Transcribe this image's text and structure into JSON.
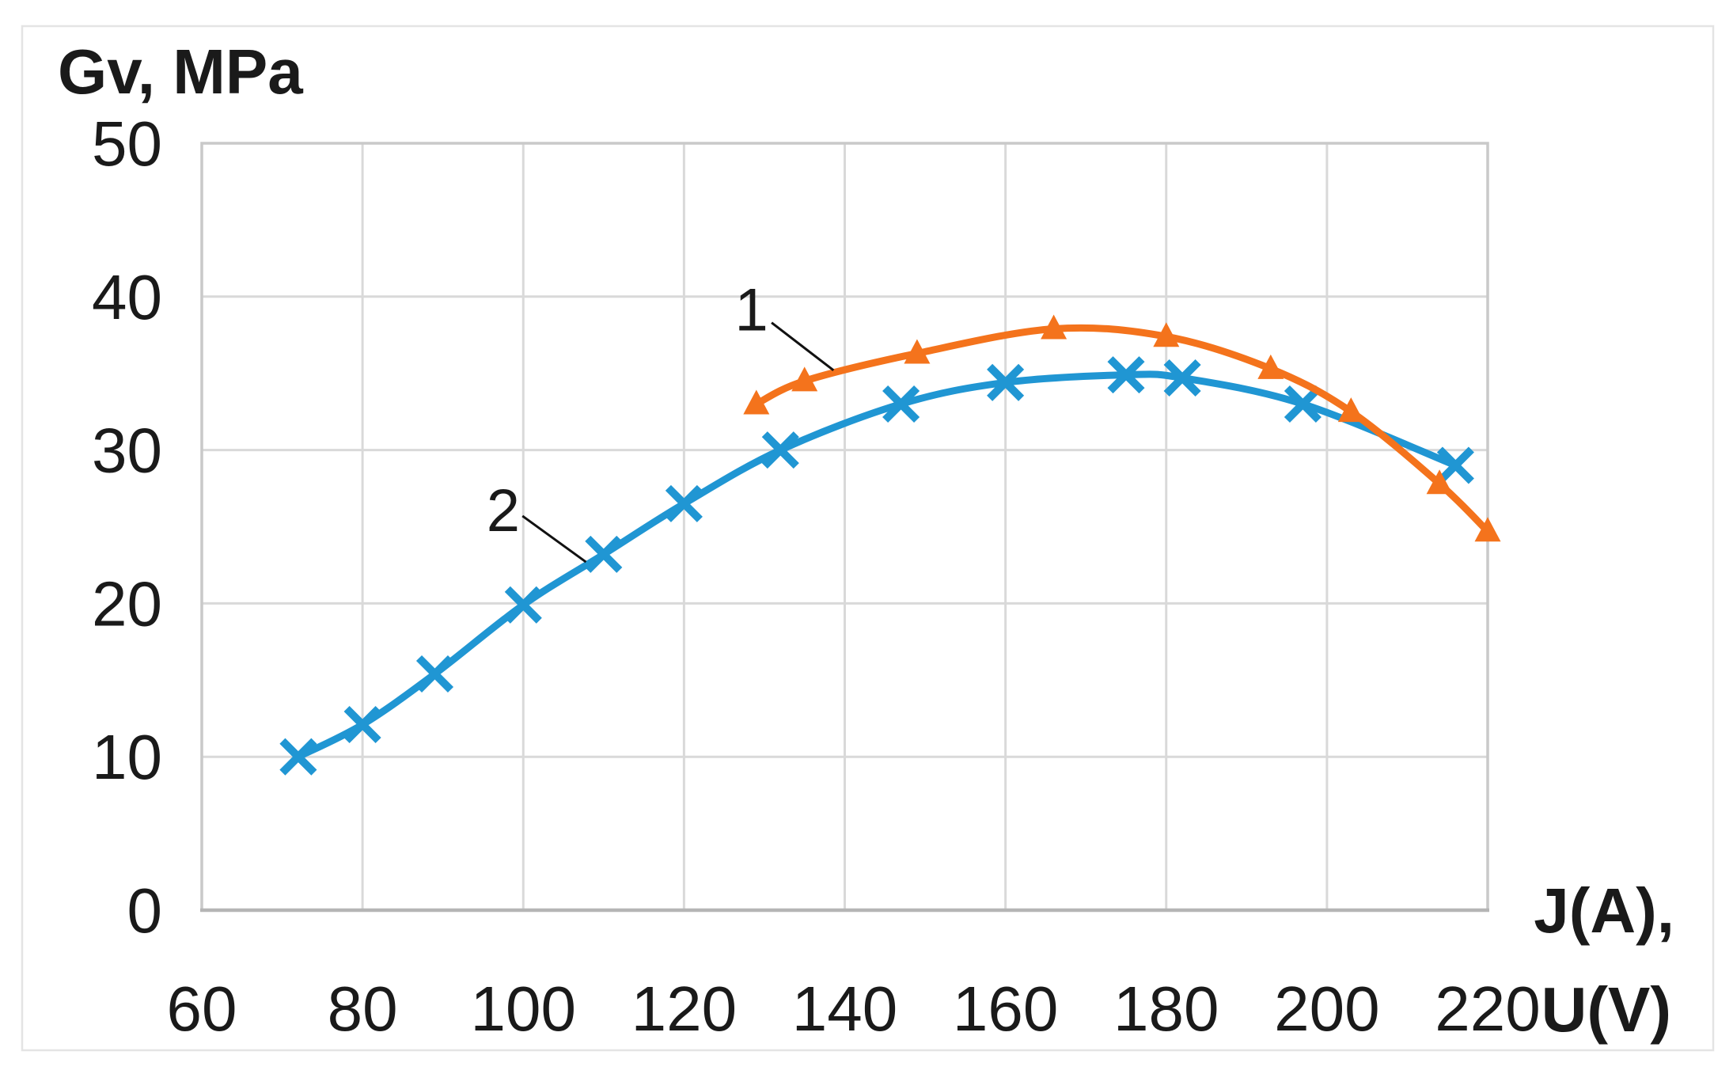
{
  "figure": {
    "y_axis_title": "Gv, MPa",
    "x_axis_title_line1": "J(A),",
    "x_axis_title_line2": "U(V)",
    "colors": {
      "series1_orange": "#F4731C",
      "series2_blue": "#2096D3",
      "gridline": "#D9D9D9",
      "plot_border": "#C9C9C9",
      "axis_line": "#B5B5B5",
      "outer_frame": "#E4E4E4",
      "text": "#1A1A1A",
      "annotation": "#111111"
    }
  },
  "chart_data": {
    "type": "line",
    "title": "",
    "xlabel": "J(A), U(V)",
    "ylabel": "Gv, MPa",
    "xlim": [
      60,
      220
    ],
    "ylim": [
      0,
      50
    ],
    "x_ticks": [
      60,
      80,
      100,
      120,
      140,
      160,
      180,
      200,
      220
    ],
    "y_ticks": [
      0,
      10,
      20,
      30,
      40,
      50
    ],
    "grid": true,
    "legend": "none",
    "smooth": true,
    "series": [
      {
        "name": "1",
        "color": "#F4731C",
        "marker": "triangle",
        "points": [
          [
            129,
            33
          ],
          [
            135,
            34.5
          ],
          [
            149,
            36.3
          ],
          [
            166,
            37.9
          ],
          [
            180,
            37.4
          ],
          [
            193,
            35.3
          ],
          [
            203,
            32.5
          ],
          [
            214,
            27.8
          ],
          [
            220,
            24.7
          ]
        ]
      },
      {
        "name": "2",
        "color": "#2096D3",
        "marker": "x",
        "points": [
          [
            72,
            10
          ],
          [
            80,
            12.1
          ],
          [
            89,
            15.4
          ],
          [
            100,
            19.9
          ],
          [
            110,
            23.2
          ],
          [
            120,
            26.5
          ],
          [
            132,
            30
          ],
          [
            147,
            33
          ],
          [
            160,
            34.4
          ],
          [
            175,
            34.9
          ],
          [
            182,
            34.7
          ],
          [
            197,
            33
          ],
          [
            216,
            29
          ]
        ]
      }
    ],
    "annotations": [
      {
        "label": "1",
        "label_xy": [
          128.4,
          39.2
        ],
        "leader_from": [
          130.9,
          38.3
        ],
        "leader_to": [
          138.6,
          35.2
        ]
      },
      {
        "label": "2",
        "label_xy": [
          97.5,
          26.1
        ],
        "leader_from": [
          99.9,
          25.7
        ],
        "leader_to": [
          107.8,
          22.7
        ]
      }
    ]
  }
}
